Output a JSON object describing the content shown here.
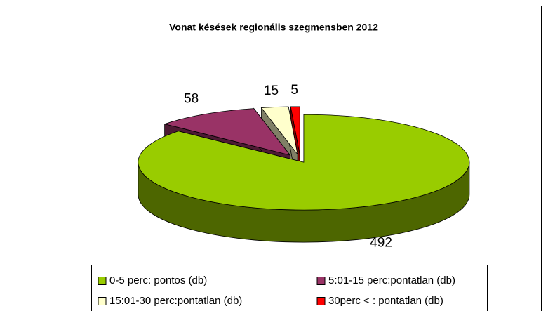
{
  "chart_data": {
    "type": "pie",
    "title": "Vonat késések regionális szegmensben 2012",
    "categories": [
      "0-5 perc: pontos (db)",
      "5:01-15 perc:pontatlan (db)",
      "15:01-30 perc:pontatlan (db)",
      "30perc < : pontatlan (db)"
    ],
    "values": [
      492,
      58,
      15,
      5
    ],
    "colors": [
      "#99cc00",
      "#993366",
      "#ffffcc",
      "#ff0000"
    ],
    "legend": "bottom"
  }
}
